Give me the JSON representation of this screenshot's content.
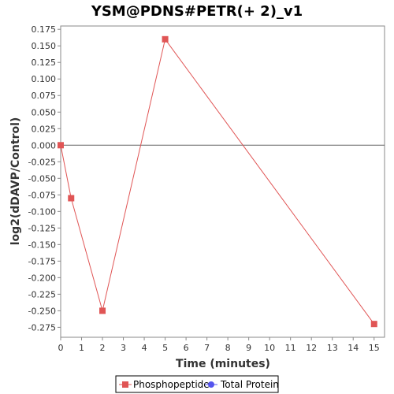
{
  "chart_data": {
    "type": "line",
    "title": "YSM@PDNS#PETR(+ 2)_v1",
    "xlabel": "Time (minutes)",
    "ylabel": "log2(dDAVP/Control)",
    "xlim": [
      0,
      15.5
    ],
    "ylim": [
      -0.29,
      0.18
    ],
    "x_ticks": [
      0,
      1,
      2,
      3,
      4,
      5,
      6,
      7,
      8,
      9,
      10,
      11,
      12,
      13,
      14,
      15
    ],
    "y_ticks": [
      0.175,
      0.15,
      0.125,
      0.1,
      0.075,
      0.05,
      0.025,
      0.0,
      -0.025,
      -0.05,
      -0.075,
      -0.1,
      -0.125,
      -0.15,
      -0.175,
      -0.2,
      -0.225,
      -0.25,
      -0.275
    ],
    "y_tick_labels": [
      "0.175",
      "0.150",
      "0.125",
      "0.100",
      "0.075",
      "0.050",
      "0.025",
      "0.000",
      "-0.025",
      "-0.050",
      "-0.075",
      "-0.100",
      "-0.125",
      "-0.150",
      "-0.175",
      "-0.200",
      "-0.225",
      "-0.250",
      "-0.275"
    ],
    "grid": false,
    "zero_line": true,
    "legend_position": "bottom-center",
    "series": [
      {
        "name": "Phosphopeptide",
        "color": "#e05555",
        "marker": "square",
        "x": [
          0,
          0.5,
          2,
          5,
          15
        ],
        "y": [
          0.0,
          -0.08,
          -0.25,
          0.16,
          -0.27
        ]
      },
      {
        "name": "Total Protein",
        "color": "#5555ee",
        "marker": "circle",
        "x": [],
        "y": []
      }
    ]
  }
}
